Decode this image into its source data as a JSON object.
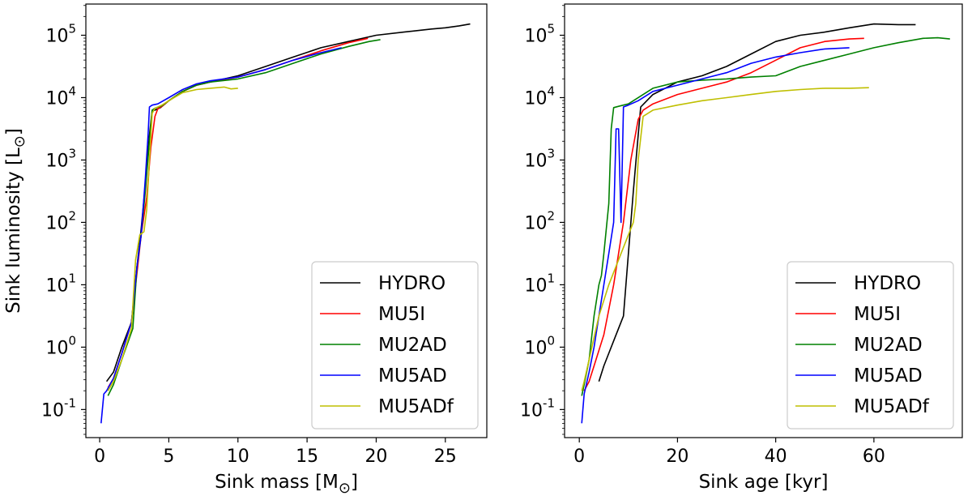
{
  "chart_data": [
    {
      "type": "line",
      "panel": "left",
      "xlabel": "Sink mass [M",
      "xlabel_sub": "⊙",
      "xlabel_end": "]",
      "ylabel": "Sink luminosity [L",
      "ylabel_sub": "⊙",
      "ylabel_end": "]",
      "xlim": [
        -1.0,
        28.0
      ],
      "ylim_log10": [
        -1.45,
        5.5
      ],
      "yscale": "log",
      "xticks": [
        0,
        5,
        10,
        15,
        20,
        25
      ],
      "yticks_exp": [
        -1,
        0,
        1,
        2,
        3,
        4,
        5
      ],
      "legend_position": "lower-right",
      "series": [
        {
          "name": "HYDRO",
          "color": "#000000",
          "x": [
            0.5,
            1.0,
            1.6,
            2.3,
            2.7,
            3.0,
            3.3,
            3.6,
            3.8,
            4.0,
            4.4,
            5.0,
            6.0,
            7.0,
            8.0,
            10.0,
            12.0,
            14.0,
            16.0,
            18.0,
            20.0,
            22.0,
            24.0,
            25.0,
            26.0,
            26.8
          ],
          "log10y": [
            -0.55,
            -0.4,
            0.0,
            0.4,
            1.3,
            1.9,
            2.6,
            3.4,
            3.8,
            3.8,
            3.84,
            3.95,
            4.1,
            4.2,
            4.25,
            4.35,
            4.5,
            4.65,
            4.8,
            4.9,
            5.0,
            5.05,
            5.1,
            5.12,
            5.15,
            5.18
          ]
        },
        {
          "name": "MU5I",
          "color": "#ff0000",
          "x": [
            0.6,
            1.0,
            1.6,
            2.3,
            2.7,
            3.0,
            3.4,
            3.7,
            4.0,
            4.2,
            4.5,
            5.0,
            6.0,
            7.0,
            8.0,
            10.0,
            12.0,
            14.0,
            16.0,
            18.0,
            19.4
          ],
          "log10y": [
            -0.65,
            -0.5,
            -0.1,
            0.4,
            1.2,
            1.8,
            2.4,
            3.2,
            3.7,
            3.82,
            3.86,
            3.95,
            4.1,
            4.2,
            4.25,
            4.33,
            4.45,
            4.6,
            4.75,
            4.88,
            4.95
          ]
        },
        {
          "name": "MU2AD",
          "color": "#008000",
          "x": [
            0.6,
            1.0,
            1.6,
            2.4,
            2.7,
            3.0,
            3.3,
            3.6,
            3.8,
            4.0,
            4.5,
            5.0,
            6.0,
            7.0,
            8.0,
            10.0,
            12.0,
            14.0,
            16.0,
            18.0,
            19.5,
            20.3
          ],
          "log10y": [
            -0.78,
            -0.6,
            -0.2,
            0.3,
            1.3,
            1.8,
            2.5,
            3.3,
            3.8,
            3.83,
            3.87,
            3.95,
            4.1,
            4.2,
            4.25,
            4.3,
            4.4,
            4.55,
            4.7,
            4.82,
            4.9,
            4.93
          ]
        },
        {
          "name": "MU5AD",
          "color": "#0000ff",
          "x": [
            0.1,
            0.3,
            0.5,
            1.0,
            1.6,
            2.3,
            2.7,
            3.0,
            3.3,
            3.5,
            3.6,
            3.8,
            4.2,
            5.0,
            6.0,
            7.0,
            8.0,
            10.0,
            12.0,
            14.0,
            16.0,
            17.5
          ],
          "log10y": [
            -1.22,
            -0.75,
            -0.7,
            -0.5,
            -0.1,
            0.4,
            1.3,
            1.8,
            2.7,
            3.4,
            3.85,
            3.88,
            3.9,
            4.0,
            4.13,
            4.22,
            4.27,
            4.33,
            4.45,
            4.6,
            4.72,
            4.8
          ]
        },
        {
          "name": "MU5ADf",
          "color": "#bfbf00",
          "x": [
            0.6,
            1.0,
            1.6,
            2.3,
            2.6,
            2.9,
            3.2,
            3.4,
            3.6,
            3.8,
            4.0,
            4.5,
            5.0,
            6.0,
            7.0,
            8.0,
            9.0,
            9.5,
            10.0
          ],
          "log10y": [
            -0.7,
            -0.55,
            -0.2,
            0.3,
            1.4,
            1.8,
            1.85,
            2.2,
            3.0,
            3.75,
            3.83,
            3.88,
            3.95,
            4.08,
            4.13,
            4.15,
            4.17,
            4.14,
            4.15
          ]
        }
      ]
    },
    {
      "type": "line",
      "panel": "right",
      "xlabel": "Sink age [kyr]",
      "xlim": [
        -3.0,
        78.0
      ],
      "ylim_log10": [
        -1.45,
        5.5
      ],
      "yscale": "log",
      "xticks": [
        0,
        20,
        40,
        60
      ],
      "yticks_exp": [
        -1,
        0,
        1,
        2,
        3,
        4,
        5
      ],
      "legend_position": "lower-right",
      "series": [
        {
          "name": "HYDRO",
          "color": "#000000",
          "x": [
            4.0,
            5.0,
            7.0,
            9.0,
            10.0,
            11.0,
            12.0,
            12.5,
            15.0,
            20.0,
            25.0,
            30.0,
            35.0,
            40.0,
            45.0,
            50.0,
            55.0,
            60.0,
            65.0,
            68.5
          ],
          "log10y": [
            -0.55,
            -0.3,
            0.1,
            0.5,
            1.5,
            2.5,
            3.4,
            3.85,
            4.05,
            4.25,
            4.35,
            4.5,
            4.7,
            4.9,
            5.0,
            5.05,
            5.12,
            5.18,
            5.17,
            5.17
          ]
        },
        {
          "name": "MU5I",
          "color": "#ff0000",
          "x": [
            1.0,
            2.0,
            3.0,
            5.0,
            7.0,
            9.0,
            10.5,
            12.0,
            13.0,
            15.0,
            20.0,
            25.0,
            30.0,
            35.0,
            40.0,
            45.0,
            50.0,
            55.0,
            58.0
          ],
          "log10y": [
            -0.7,
            -0.55,
            -0.3,
            0.2,
            1.0,
            2.0,
            3.0,
            3.65,
            3.8,
            3.9,
            4.05,
            4.15,
            4.25,
            4.4,
            4.6,
            4.8,
            4.9,
            4.94,
            4.95
          ]
        },
        {
          "name": "MU2AD",
          "color": "#008000",
          "x": [
            0.5,
            1.0,
            2.0,
            3.0,
            4.0,
            4.5,
            5.0,
            6.0,
            6.5,
            7.0,
            8.0,
            10.0,
            15.0,
            20.0,
            25.0,
            30.0,
            35.0,
            40.0,
            45.0,
            50.0,
            55.0,
            60.0,
            65.0,
            70.0,
            73.0,
            75.5
          ],
          "log10y": [
            -0.78,
            -0.6,
            -0.2,
            0.5,
            1.0,
            1.15,
            1.5,
            2.3,
            3.5,
            3.84,
            3.86,
            3.9,
            4.15,
            4.25,
            4.28,
            4.3,
            4.33,
            4.35,
            4.5,
            4.6,
            4.7,
            4.8,
            4.88,
            4.95,
            4.96,
            4.94
          ]
        },
        {
          "name": "MU5AD",
          "color": "#0000ff",
          "x": [
            0.5,
            1.0,
            2.0,
            3.0,
            4.0,
            5.0,
            6.0,
            7.0,
            7.5,
            8.0,
            8.5,
            9.0,
            10.0,
            12.0,
            15.0,
            20.0,
            25.0,
            30.0,
            35.0,
            40.0,
            45.0,
            50.0,
            55.0
          ],
          "log10y": [
            -1.22,
            -0.75,
            -0.4,
            0.0,
            0.5,
            1.0,
            1.5,
            2.0,
            3.5,
            3.5,
            2.0,
            3.85,
            3.88,
            3.95,
            4.1,
            4.2,
            4.3,
            4.4,
            4.55,
            4.65,
            4.72,
            4.78,
            4.8
          ]
        },
        {
          "name": "MU5ADf",
          "color": "#bfbf00",
          "x": [
            0.5,
            1.0,
            2.0,
            4.0,
            6.0,
            8.0,
            10.0,
            11.0,
            11.5,
            12.0,
            13.0,
            15.0,
            20.0,
            25.0,
            30.0,
            35.0,
            40.0,
            45.0,
            50.0,
            55.0,
            59.0
          ],
          "log10y": [
            -0.7,
            -0.55,
            -0.2,
            0.5,
            1.0,
            1.4,
            1.8,
            2.0,
            2.3,
            3.0,
            3.7,
            3.8,
            3.88,
            3.95,
            4.0,
            4.05,
            4.1,
            4.13,
            4.15,
            4.15,
            4.16
          ]
        }
      ]
    }
  ]
}
